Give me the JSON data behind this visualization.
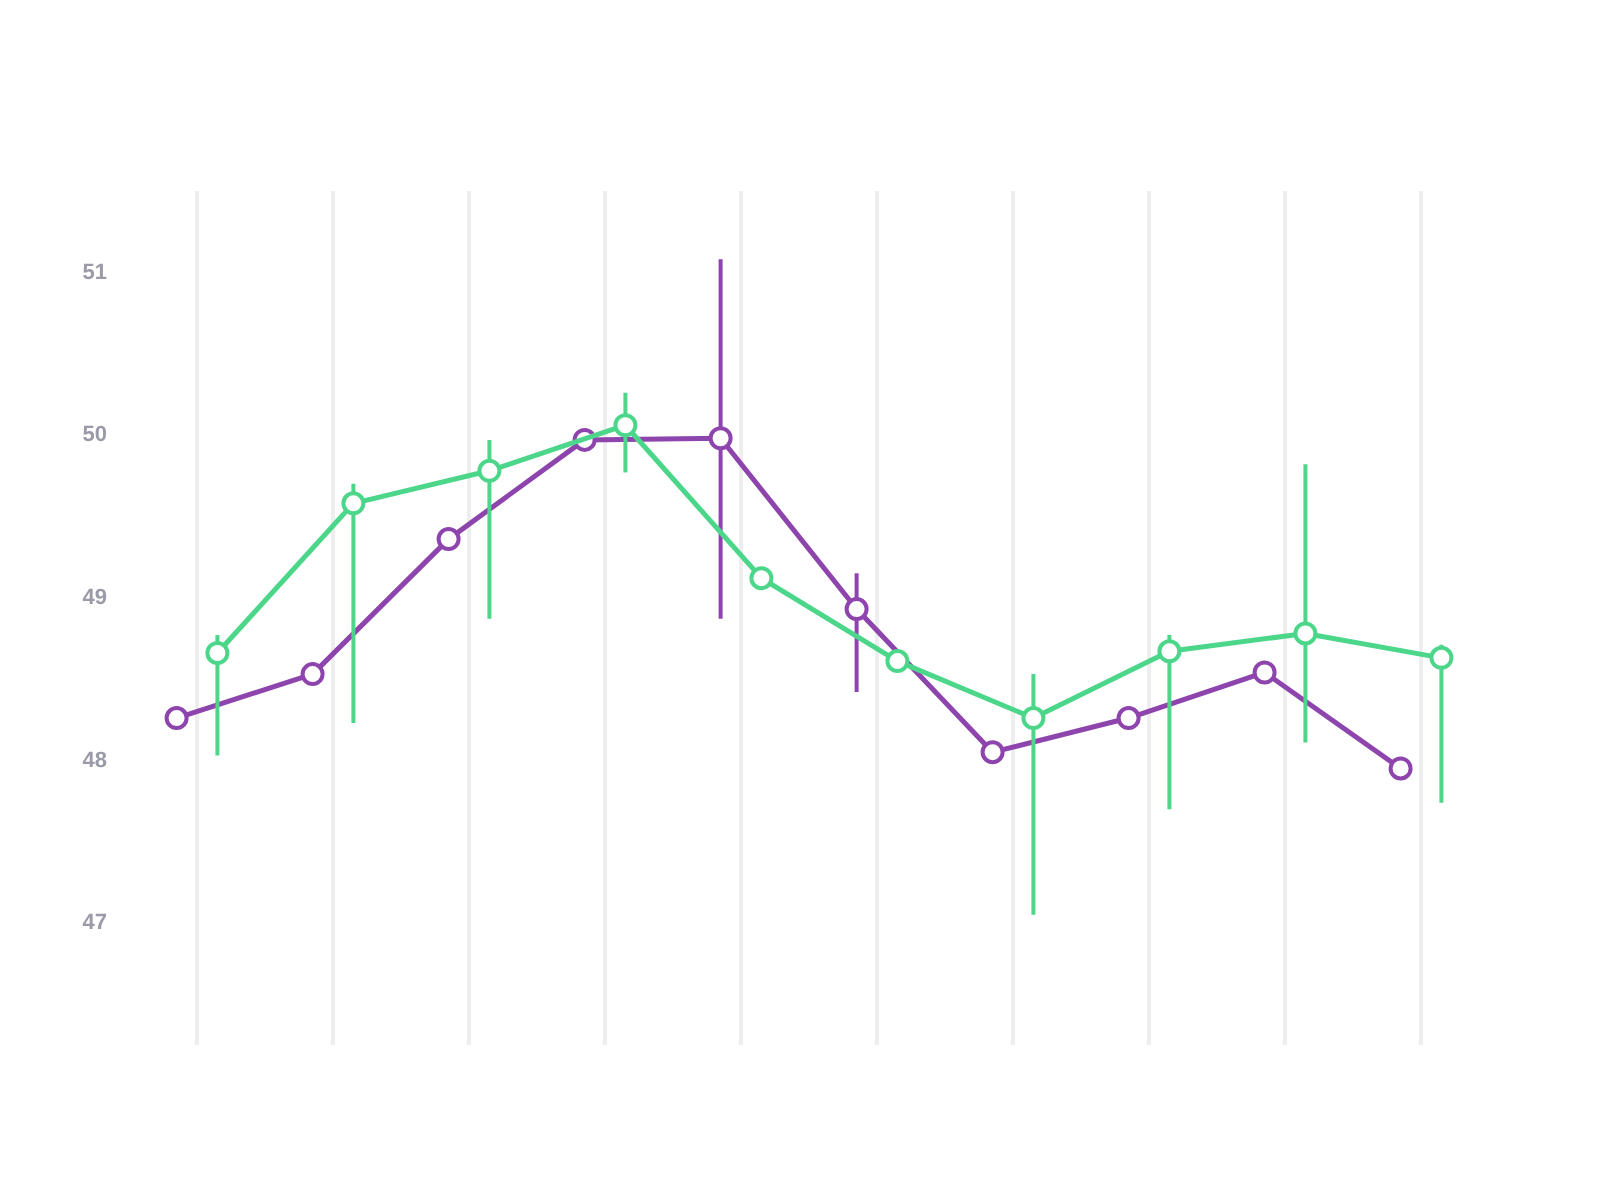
{
  "chart_data": {
    "type": "line",
    "categories": [
      null,
      null,
      null,
      null,
      null,
      null,
      null,
      null,
      null,
      null
    ],
    "series": [
      {
        "color": "#8e44ad",
        "values": [
          48.25,
          48.52,
          49.35,
          49.96,
          49.97,
          48.92,
          48.04,
          48.25,
          48.53,
          47.94
        ],
        "errors": [
          null,
          null,
          null,
          null,
          [
            48.86,
            51.07
          ],
          [
            48.41,
            49.14
          ],
          null,
          null,
          null,
          null
        ]
      },
      {
        "color": "#4cd68a",
        "values": [
          48.65,
          49.57,
          49.77,
          50.05,
          49.11,
          48.6,
          48.25,
          48.66,
          48.77,
          48.62
        ],
        "errors": [
          [
            48.02,
            48.76
          ],
          [
            48.22,
            49.69
          ],
          [
            48.86,
            49.96
          ],
          [
            49.76,
            50.25
          ],
          null,
          null,
          [
            47.04,
            48.52
          ],
          [
            47.69,
            48.76
          ],
          [
            48.1,
            49.81
          ],
          [
            47.73,
            48.7
          ]
        ]
      }
    ],
    "ylim": [
      46.24,
      51.49
    ],
    "yticks": [
      47,
      48,
      49,
      50,
      51
    ],
    "grid": "x",
    "marker": "circle",
    "line_style": "solid",
    "tick_labels": "y"
  }
}
